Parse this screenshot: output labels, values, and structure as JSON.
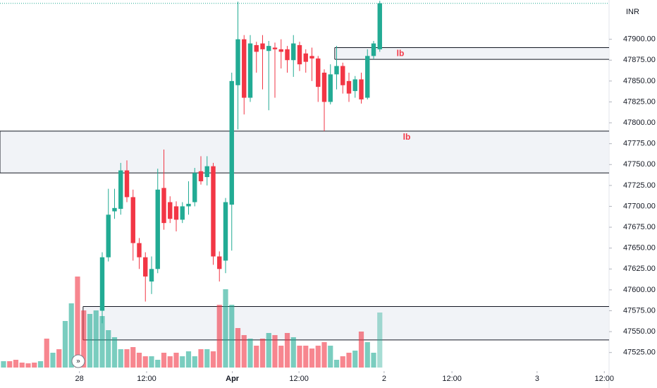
{
  "chart_data": {
    "type": "candlestick",
    "currency": "INR",
    "up_color": "#22ab94",
    "down_color": "#f23645",
    "ylim": [
      47507,
      47947
    ],
    "xlim": [
      -0.57,
      98.17
    ],
    "yticks": [
      {
        "value": 47525,
        "label": "47525.00"
      },
      {
        "value": 47550,
        "label": "47550.00"
      },
      {
        "value": 47575,
        "label": "47575.00"
      },
      {
        "value": 47600,
        "label": "47600.00"
      },
      {
        "value": 47625,
        "label": "47625.00"
      },
      {
        "value": 47650,
        "label": "47650.00"
      },
      {
        "value": 47675,
        "label": "47675.00"
      },
      {
        "value": 47700,
        "label": "47700.00"
      },
      {
        "value": 47725,
        "label": "47725.00"
      },
      {
        "value": 47750,
        "label": "47750.00"
      },
      {
        "value": 47775,
        "label": "47775.00"
      },
      {
        "value": 47800,
        "label": "47800.00"
      },
      {
        "value": 47825,
        "label": "47825.00"
      },
      {
        "value": 47850,
        "label": "47850.00"
      },
      {
        "value": 47875,
        "label": "47875.00"
      },
      {
        "value": 47900,
        "label": "47900.00"
      }
    ],
    "xticks": [
      {
        "value": 12.3,
        "label": "28"
      },
      {
        "value": 23.2,
        "label": "12:00"
      },
      {
        "value": 37.1,
        "label": "Apr"
      },
      {
        "value": 47.9,
        "label": "12:00"
      },
      {
        "value": 61.7,
        "label": "2"
      },
      {
        "value": 72.7,
        "label": "12:00"
      },
      {
        "value": 86.5,
        "label": "3"
      },
      {
        "value": 97.4,
        "label": "12:00"
      }
    ],
    "candles": {
      "x": [
        16,
        17,
        18,
        19,
        20,
        21,
        22,
        23,
        24,
        25,
        26,
        27,
        28,
        29,
        30,
        31,
        32,
        33,
        34,
        35,
        36,
        37,
        38,
        39,
        40,
        41,
        42,
        43,
        44,
        45,
        46,
        47,
        48,
        49,
        50,
        51,
        52,
        53,
        54,
        55,
        56,
        57,
        58,
        59,
        60,
        61
      ],
      "open": [
        47575,
        47639,
        47694,
        47697,
        47743,
        47711,
        47656,
        47639,
        47610,
        47625,
        47722,
        47705,
        47700,
        47684,
        47700,
        47705,
        47742,
        47735,
        47748,
        47640,
        47635,
        47702,
        47845,
        47900,
        47830,
        47893,
        47895,
        47886,
        47890,
        47888,
        47888,
        47875,
        47893,
        47883,
        47880,
        47877,
        47860,
        47825,
        47858,
        47868,
        47850,
        47838,
        47852,
        47830,
        47880,
        47888
      ],
      "high": [
        47645,
        47721,
        47721,
        47752,
        47755,
        47720,
        47662,
        47645,
        47640,
        47745,
        47768,
        47712,
        47706,
        47705,
        47730,
        47746,
        47760,
        47760,
        47752,
        47646,
        47710,
        47860,
        47945,
        47905,
        47905,
        47897,
        47905,
        47898,
        47896,
        47900,
        47892,
        47905,
        47897,
        47888,
        47890,
        47880,
        47864,
        47870,
        47892,
        47872,
        47860,
        47856,
        47860,
        47888,
        47898,
        47946
      ],
      "low": [
        47560,
        47634,
        47685,
        47690,
        47705,
        47635,
        47625,
        47586,
        47595,
        47620,
        47672,
        47680,
        47670,
        47680,
        47690,
        47700,
        47726,
        47725,
        47630,
        47610,
        47620,
        47647,
        47792,
        47810,
        47825,
        47860,
        47840,
        47815,
        47830,
        47865,
        47860,
        47855,
        47862,
        47860,
        47850,
        47825,
        47790,
        47822,
        47840,
        47835,
        47825,
        47830,
        47823,
        47828,
        47876,
        47885
      ],
      "close": [
        47639,
        47690,
        47698,
        47743,
        47711,
        47656,
        47639,
        47616,
        47625,
        47720,
        47680,
        47685,
        47684,
        47700,
        47703,
        47740,
        47730,
        47748,
        47640,
        47625,
        47705,
        47850,
        47900,
        47830,
        47895,
        47885,
        47888,
        47892,
        47888,
        47885,
        47875,
        47895,
        47870,
        47873,
        47877,
        47843,
        47825,
        47858,
        47868,
        47845,
        47835,
        47852,
        47828,
        47880,
        47895,
        47943
      ]
    },
    "volume": {
      "values": [
        9,
        9,
        11,
        7,
        6,
        7,
        9,
        41,
        21,
        26,
        66,
        91,
        129,
        81,
        76,
        81,
        73,
        53,
        43,
        26,
        26,
        29,
        21,
        16,
        16,
        11,
        21,
        16,
        21,
        16,
        23,
        16,
        26,
        26,
        23,
        89,
        111,
        89,
        56,
        46,
        41,
        31,
        41,
        49,
        46,
        31,
        49,
        43,
        31,
        31,
        27,
        31,
        36,
        31,
        11,
        16,
        21,
        24,
        51,
        36,
        21,
        78
      ],
      "colors": [
        "#22ab9499",
        "#f2364599",
        "#f2364599",
        "#f2364599",
        "#f2364599",
        "#f2364599",
        "#22ab9499",
        "#f2364599",
        "#22ab9499",
        "#f2364599",
        "#22ab9499",
        "#22ab9499",
        "#f2364599",
        "#f2364599",
        "#22ab9499",
        "#22ab9499",
        "#22ab9499",
        "#22ab9499",
        "#22ab9499",
        "#22ab9499",
        "#f2364599",
        "#f2364599",
        "#f2364599",
        "#f2364599",
        "#22ab9499",
        "#22ab9499",
        "#f2364599",
        "#f2364599",
        "#f2364599",
        "#22ab9499",
        "#22ab9499",
        "#22ab9499",
        "#f2364599",
        "#22ab9499",
        "#f2364599",
        "#f2364599",
        "#22ab9499",
        "#22ab9499",
        "#f2364599",
        "#f2364599",
        "#22ab9499",
        "#f2364599",
        "#f2364599",
        "#22ab9499",
        "#f2364599",
        "#f2364599",
        "#f2364599",
        "#22ab9499",
        "#f2364599",
        "#f2364599",
        "#f2364599",
        "#f2364599",
        "#f2364599",
        "#22ab9499",
        "#22ab9499",
        "#f2364599",
        "#f2364599",
        "#22ab9499",
        "#f2364599",
        "#22ab9499",
        "#22ab9499",
        "#22ab9466"
      ]
    },
    "zones": [
      {
        "high": 47790,
        "low": 47740,
        "from": -0.57,
        "label": "lb"
      },
      {
        "high": 47890,
        "low": 47876,
        "from": 53.7,
        "label": "lb"
      },
      {
        "high": 47580,
        "low": 47540,
        "from": 12.9
      }
    ],
    "last_price": 47943
  }
}
